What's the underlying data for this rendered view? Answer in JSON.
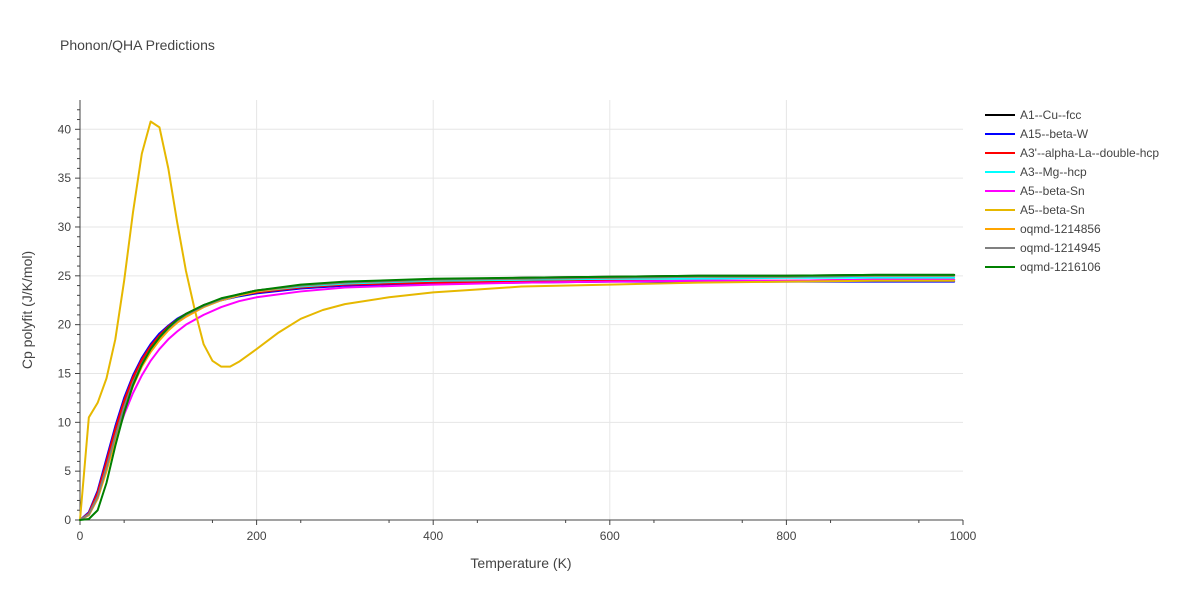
{
  "chart_data": {
    "type": "line",
    "title": "Phonon/QHA Predictions",
    "xlabel": "Temperature (K)",
    "ylabel": "Cp polyfit (J/K/mol)",
    "xlim": [
      0,
      1000
    ],
    "ylim": [
      0,
      43
    ],
    "xticks": [
      0,
      200,
      400,
      600,
      800,
      1000
    ],
    "yticks": [
      0,
      5,
      10,
      15,
      20,
      25,
      30,
      35,
      40
    ],
    "grid": true,
    "legend_position": "top-right outside",
    "series": [
      {
        "name": "A1--Cu--fcc",
        "color": "#000000",
        "x": [
          0,
          10,
          20,
          30,
          40,
          50,
          60,
          70,
          80,
          90,
          100,
          110,
          120,
          140,
          160,
          180,
          200,
          250,
          300,
          400,
          500,
          600,
          700,
          800,
          900,
          990
        ],
        "y": [
          0,
          0.6,
          2.5,
          5.6,
          8.9,
          11.9,
          14.3,
          16.2,
          17.7,
          18.8,
          19.7,
          20.5,
          21.1,
          22.0,
          22.6,
          23.1,
          23.5,
          24.0,
          24.3,
          24.6,
          24.8,
          24.9,
          25.0,
          25.0,
          25.1,
          25.1
        ]
      },
      {
        "name": "A15--beta-W",
        "color": "#0000ff",
        "x": [
          0,
          10,
          20,
          30,
          40,
          50,
          60,
          70,
          80,
          90,
          100,
          110,
          120,
          140,
          160,
          180,
          200,
          250,
          300,
          400,
          500,
          600,
          700,
          800,
          900,
          990
        ],
        "y": [
          0,
          0.8,
          3.0,
          6.3,
          9.6,
          12.5,
          14.8,
          16.6,
          18.0,
          19.1,
          19.9,
          20.6,
          21.1,
          21.9,
          22.5,
          22.9,
          23.2,
          23.7,
          24.0,
          24.2,
          24.3,
          24.4,
          24.4,
          24.4,
          24.4,
          24.4
        ]
      },
      {
        "name": "A3'--alpha-La--double-hcp",
        "color": "#ff0000",
        "x": [
          0,
          10,
          20,
          30,
          40,
          50,
          60,
          70,
          80,
          90,
          100,
          110,
          120,
          140,
          160,
          180,
          200,
          250,
          300,
          400,
          500,
          600,
          700,
          800,
          900,
          990
        ],
        "y": [
          0,
          0.7,
          2.8,
          6.0,
          9.3,
          12.2,
          14.6,
          16.4,
          17.8,
          18.9,
          19.8,
          20.5,
          21.1,
          21.9,
          22.5,
          23.0,
          23.3,
          23.8,
          24.1,
          24.3,
          24.4,
          24.5,
          24.5,
          24.5,
          24.6,
          24.6
        ]
      },
      {
        "name": "A3--Mg--hcp",
        "color": "#00ffff",
        "x": [
          0,
          10,
          20,
          30,
          40,
          50,
          60,
          70,
          80,
          90,
          100,
          110,
          120,
          140,
          160,
          180,
          200,
          250,
          300,
          400,
          500,
          600,
          700,
          800,
          900,
          990
        ],
        "y": [
          0,
          0.5,
          2.2,
          5.2,
          8.5,
          11.5,
          14.0,
          15.9,
          17.4,
          18.6,
          19.5,
          20.3,
          20.9,
          21.8,
          22.5,
          23.0,
          23.4,
          23.9,
          24.2,
          24.5,
          24.6,
          24.7,
          24.7,
          24.8,
          24.8,
          24.8
        ]
      },
      {
        "name": "A5--beta-Sn",
        "color": "#ff00ff",
        "x": [
          0,
          10,
          20,
          30,
          40,
          50,
          60,
          70,
          80,
          90,
          100,
          110,
          120,
          140,
          160,
          180,
          200,
          250,
          300,
          400,
          500,
          600,
          700,
          800,
          900,
          990
        ],
        "y": [
          0,
          0.5,
          2.3,
          5.2,
          8.2,
          10.8,
          13.0,
          14.8,
          16.3,
          17.5,
          18.5,
          19.3,
          20.0,
          21.0,
          21.8,
          22.4,
          22.8,
          23.4,
          23.8,
          24.1,
          24.3,
          24.4,
          24.5,
          24.5,
          24.6,
          24.6
        ]
      },
      {
        "name": "A5--beta-Sn",
        "color": "#e6b800",
        "x": [
          0,
          10,
          20,
          30,
          40,
          50,
          60,
          70,
          80,
          90,
          100,
          110,
          120,
          130,
          140,
          150,
          160,
          170,
          180,
          200,
          225,
          250,
          275,
          300,
          350,
          400,
          450,
          500,
          600,
          700,
          800,
          900,
          990
        ],
        "y": [
          0,
          10.5,
          12.0,
          14.5,
          18.5,
          24.5,
          31.5,
          37.5,
          40.8,
          40.2,
          36.0,
          30.5,
          25.5,
          21.5,
          18.0,
          16.3,
          15.7,
          15.7,
          16.2,
          17.5,
          19.2,
          20.6,
          21.5,
          22.1,
          22.8,
          23.3,
          23.6,
          23.9,
          24.1,
          24.3,
          24.4,
          24.5,
          24.5
        ]
      },
      {
        "name": "oqmd-1214856",
        "color": "#ffa500",
        "x": [
          0,
          10,
          20,
          30,
          40,
          50,
          60,
          70,
          80,
          90,
          100,
          110,
          120,
          140,
          160,
          180,
          200,
          250,
          300,
          400,
          500,
          600,
          700,
          800,
          900,
          990
        ],
        "y": [
          0,
          0.5,
          2.2,
          5.0,
          8.2,
          11.2,
          13.7,
          15.7,
          17.2,
          18.4,
          19.4,
          20.2,
          20.8,
          21.8,
          22.5,
          23.0,
          23.4,
          24.0,
          24.3,
          24.6,
          24.7,
          24.8,
          24.9,
          24.9,
          25.0,
          25.0
        ]
      },
      {
        "name": "oqmd-1214945",
        "color": "#808080",
        "x": [
          0,
          10,
          20,
          30,
          40,
          50,
          60,
          70,
          80,
          90,
          100,
          110,
          120,
          140,
          160,
          180,
          200,
          250,
          300,
          400,
          500,
          600,
          700,
          800,
          900,
          990
        ],
        "y": [
          0,
          0.6,
          2.4,
          5.4,
          8.6,
          11.6,
          14.1,
          16.0,
          17.5,
          18.7,
          19.6,
          20.4,
          21.0,
          21.9,
          22.6,
          23.1,
          23.5,
          24.0,
          24.3,
          24.6,
          24.7,
          24.8,
          24.9,
          24.9,
          25.0,
          25.0
        ]
      },
      {
        "name": "oqmd-1216106",
        "color": "#008000",
        "x": [
          0,
          10,
          20,
          30,
          40,
          50,
          60,
          70,
          80,
          90,
          100,
          110,
          120,
          140,
          160,
          180,
          200,
          250,
          300,
          400,
          500,
          600,
          700,
          800,
          900,
          990
        ],
        "y": [
          0,
          0.1,
          1.0,
          3.8,
          7.6,
          11.0,
          13.8,
          15.9,
          17.5,
          18.7,
          19.7,
          20.5,
          21.1,
          22.0,
          22.7,
          23.1,
          23.5,
          24.1,
          24.4,
          24.7,
          24.8,
          24.9,
          25.0,
          25.0,
          25.1,
          25.1
        ]
      }
    ]
  }
}
